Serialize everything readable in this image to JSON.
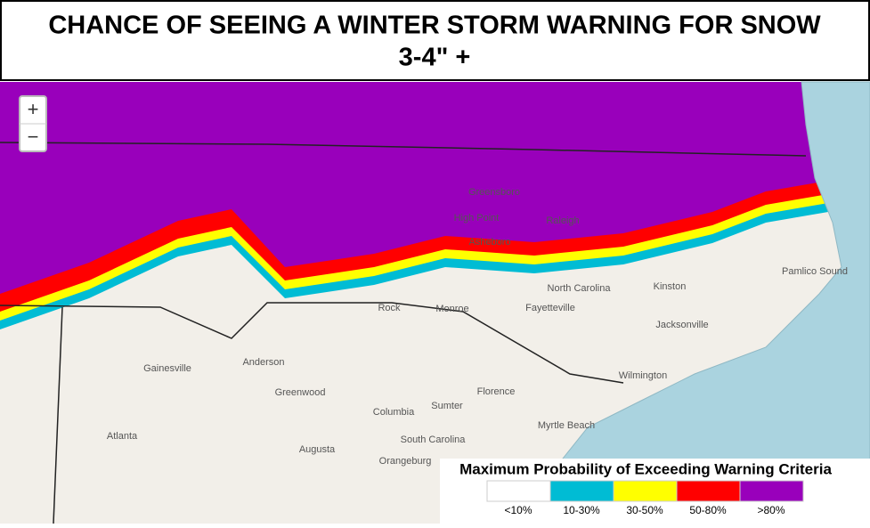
{
  "header": {
    "title_line1": "CHANCE OF SEEING A WINTER STORM WARNING FOR SNOW",
    "title_line2": "3-4\" +"
  },
  "zoom_controls": {
    "zoom_in": "+",
    "zoom_out": "−"
  },
  "map_labels": [
    "Greensboro",
    "High Point",
    "Raleigh",
    "Asheboro",
    "North Carolina",
    "Rock",
    "Monroe",
    "Fayetteville",
    "Kinston",
    "Jacksonville",
    "Wilmington",
    "Anderson",
    "Greenwood",
    "Columbia",
    "Sumter",
    "Florence",
    "Myrtle Beach",
    "Augusta",
    "Orangeburg",
    "South Carolina",
    "Atlanta",
    "Gainesville",
    "Pamlico Sound"
  ],
  "legend": {
    "title": "Maximum Probability of Exceeding Warning Criteria",
    "items": [
      {
        "label": "<10%",
        "color": "#ffffff"
      },
      {
        "label": "10-30%",
        "color": "#00bcd4"
      },
      {
        "label": "30-50%",
        "color": "#ffff00"
      },
      {
        "label": "50-80%",
        "color": "#ff0000"
      },
      {
        "label": ">80%",
        "color": "#9900bb"
      }
    ]
  }
}
